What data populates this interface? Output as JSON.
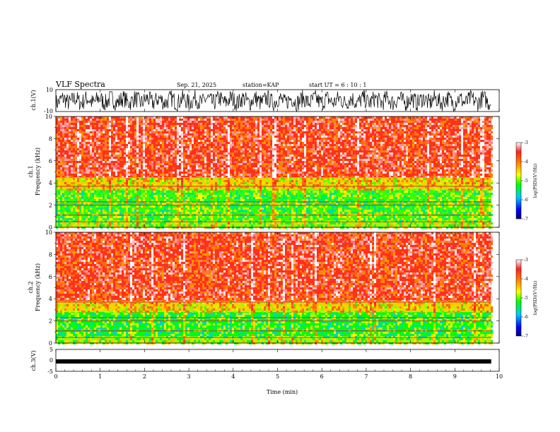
{
  "header": {
    "title": "VLF Spectra",
    "date": "Sep. 21, 2025",
    "station": "station=KAP",
    "start": "start  UT =  6 : 10 : 1"
  },
  "colorbar": {
    "label": "log(PSD)(V²/Hz)",
    "ticks": [
      "-3",
      "-4",
      "-5",
      "-6",
      "-7"
    ],
    "colors": [
      "#ffffff",
      "#ff2020",
      "#ff9a00",
      "#ffff00",
      "#00ff00",
      "#00c8ff",
      "#0000ff",
      "#000080"
    ]
  },
  "chart_data": [
    {
      "id": "ch1-waveform",
      "type": "line",
      "ylabel": "ch.1(V)",
      "ylim": [
        -10,
        10
      ],
      "ytick_labels": [
        "10",
        "-10"
      ],
      "xlim": [
        0,
        10
      ],
      "x_end_min": 9.82
    },
    {
      "id": "ch1-spectrogram",
      "type": "heatmap",
      "ylabel_line1": "ch.1",
      "ylabel_line2": "Frequency (kHz)",
      "ylim": [
        0,
        10
      ],
      "ytick_labels": [
        "0",
        "2",
        "4",
        "6",
        "8",
        "10"
      ],
      "xlim": [
        0,
        10
      ],
      "x_end_min": 9.82,
      "zlim": [
        -7,
        -3
      ],
      "bands": [
        {
          "f_from": 0.0,
          "f_to": 0.6,
          "log_psd": -4.8
        },
        {
          "f_from": 0.6,
          "f_to": 3.4,
          "log_psd": -5.0
        },
        {
          "f_from": 3.4,
          "f_to": 4.5,
          "log_psd": -4.4
        },
        {
          "f_from": 4.5,
          "f_to": 10.0,
          "log_psd": -3.6
        }
      ]
    },
    {
      "id": "ch2-spectrogram",
      "type": "heatmap",
      "ylabel_line1": "ch.2",
      "ylabel_line2": "Frequency (kHz)",
      "ylim": [
        0,
        10
      ],
      "ytick_labels": [
        "0",
        "2",
        "4",
        "6",
        "8",
        "10"
      ],
      "xlim": [
        0,
        10
      ],
      "x_end_min": 9.82,
      "zlim": [
        -7,
        -3
      ],
      "bands": [
        {
          "f_from": 0.0,
          "f_to": 0.6,
          "log_psd": -4.8
        },
        {
          "f_from": 0.6,
          "f_to": 2.8,
          "log_psd": -5.1
        },
        {
          "f_from": 2.8,
          "f_to": 3.8,
          "log_psd": -4.4
        },
        {
          "f_from": 3.8,
          "f_to": 10.0,
          "log_psd": -3.6
        }
      ]
    },
    {
      "id": "ch3-waveform",
      "type": "line",
      "ylabel": "ch.3(V)",
      "ylim": [
        -5,
        5
      ],
      "ytick_labels": [
        "5",
        "0",
        "-5"
      ],
      "level": -0.5,
      "xlim": [
        0,
        10
      ],
      "x_end_min": 9.82,
      "xticks": [
        "0",
        "1",
        "2",
        "3",
        "4",
        "5",
        "6",
        "7",
        "8",
        "9",
        "10"
      ],
      "xlabel": "Time (min)"
    }
  ]
}
